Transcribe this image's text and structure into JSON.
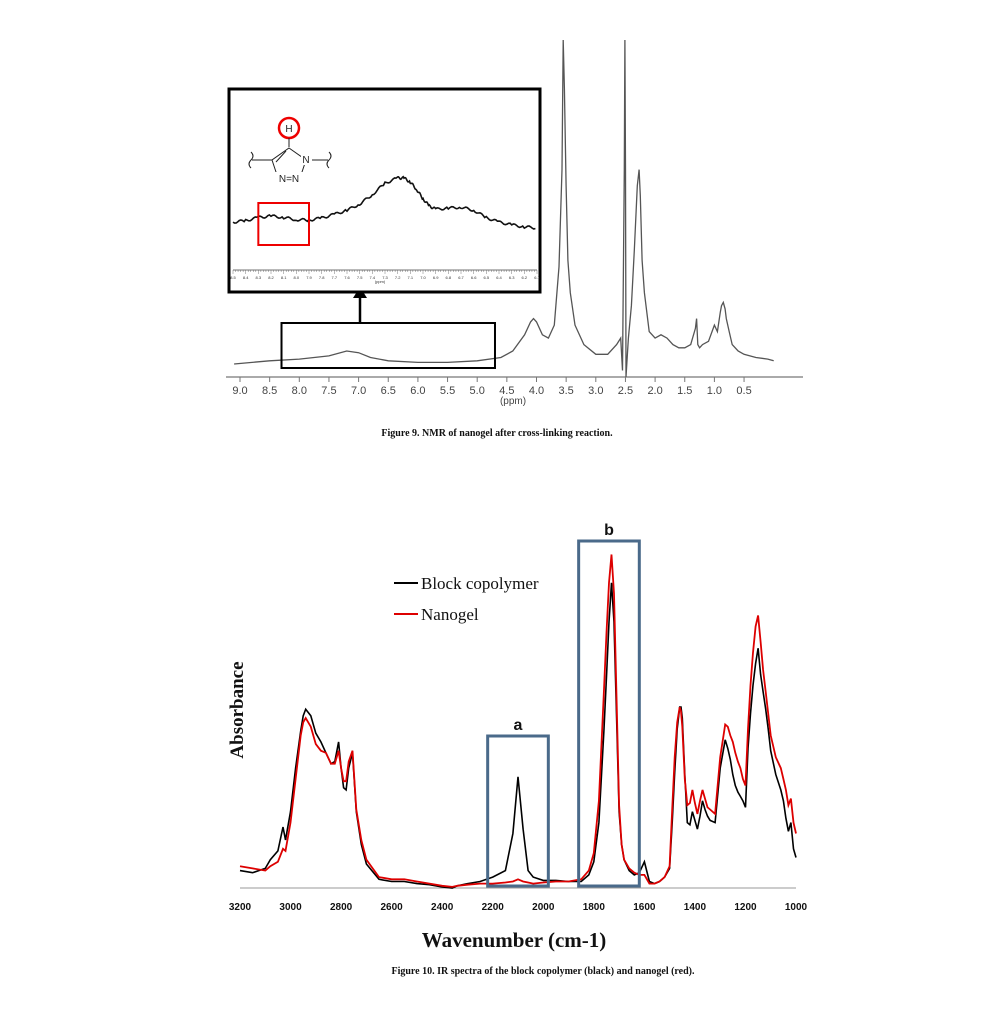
{
  "chart_data": [
    {
      "type": "line",
      "id": "nmr",
      "caption": "Figure 9. NMR of nanogel after cross-linking reaction.",
      "xlabel": "(ppm)",
      "x_ticks": [
        "9.0",
        "8.5",
        "8.0",
        "7.5",
        "7.0",
        "6.5",
        "6.0",
        "5.5",
        "5.0",
        "4.5",
        "4.0",
        "3.5",
        "3.0",
        "2.5",
        "2.0",
        "1.5",
        "1.0",
        "0.5"
      ],
      "xlim": [
        9.1,
        0.0
      ],
      "axis_direction": "reversed",
      "series": [
        {
          "color": "#555555",
          "x": [
            9.1,
            8.5,
            8.0,
            7.5,
            7.2,
            7.0,
            6.8,
            6.5,
            6.0,
            5.5,
            5.0,
            4.6,
            4.4,
            4.2,
            4.1,
            4.05,
            4.0,
            3.9,
            3.8,
            3.7,
            3.62,
            3.57,
            3.55,
            3.53,
            3.5,
            3.47,
            3.43,
            3.35,
            3.2,
            3.0,
            2.8,
            2.65,
            2.58,
            2.55,
            2.52,
            2.51,
            2.5,
            2.49,
            2.47,
            2.45,
            2.4,
            2.35,
            2.3,
            2.27,
            2.25,
            2.22,
            2.18,
            2.1,
            2.0,
            1.9,
            1.8,
            1.7,
            1.6,
            1.5,
            1.4,
            1.32,
            1.3,
            1.28,
            1.25,
            1.2,
            1.1,
            1.0,
            0.95,
            0.9,
            0.88,
            0.85,
            0.82,
            0.8,
            0.75,
            0.7,
            0.6,
            0.5,
            0.3,
            0.1,
            0.0
          ],
          "y": [
            0.0,
            0.01,
            0.015,
            0.025,
            0.04,
            0.035,
            0.02,
            0.01,
            0.005,
            0.005,
            0.01,
            0.02,
            0.04,
            0.09,
            0.13,
            0.14,
            0.13,
            0.09,
            0.08,
            0.12,
            0.3,
            0.6,
            1.0,
            0.85,
            0.55,
            0.32,
            0.22,
            0.12,
            0.06,
            0.03,
            0.03,
            0.06,
            0.08,
            -0.02,
            0.6,
            1.0,
            0.6,
            -0.04,
            0.02,
            0.08,
            0.18,
            0.35,
            0.55,
            0.6,
            0.52,
            0.32,
            0.22,
            0.1,
            0.08,
            0.09,
            0.08,
            0.06,
            0.05,
            0.05,
            0.06,
            0.11,
            0.14,
            0.06,
            0.05,
            0.06,
            0.07,
            0.12,
            0.1,
            0.16,
            0.18,
            0.19,
            0.17,
            0.14,
            0.1,
            0.06,
            0.04,
            0.03,
            0.02,
            0.015,
            0.01
          ]
        }
      ],
      "highlight_range": [
        8.3,
        4.7
      ],
      "inset": {
        "tick_labels": [
          "8.5",
          "8.4",
          "8.3",
          "8.2",
          "8.1",
          "8.0",
          "7.9",
          "7.8",
          "7.7",
          "7.6",
          "7.5",
          "7.4",
          "7.3",
          "7.2",
          "7.1",
          "7.0",
          "6.9",
          "6.8",
          "6.7",
          "6.6",
          "6.5",
          "6.4",
          "6.3",
          "6.2",
          "6.1"
        ],
        "xlabel": "(ppm)",
        "xlim": [
          8.5,
          6.1
        ],
        "highlight_range": [
          8.3,
          7.9
        ],
        "x": [
          8.5,
          8.4,
          8.3,
          8.2,
          8.1,
          8.0,
          7.9,
          7.8,
          7.7,
          7.6,
          7.5,
          7.4,
          7.3,
          7.2,
          7.15,
          7.1,
          7.05,
          7.0,
          6.95,
          6.9,
          6.8,
          6.7,
          6.6,
          6.5,
          6.4,
          6.3,
          6.2,
          6.1
        ],
        "y": [
          0.15,
          0.18,
          0.24,
          0.27,
          0.24,
          0.2,
          0.19,
          0.23,
          0.3,
          0.38,
          0.5,
          0.68,
          0.9,
          1.0,
          1.0,
          0.92,
          0.78,
          0.6,
          0.46,
          0.4,
          0.42,
          0.44,
          0.38,
          0.24,
          0.15,
          0.1,
          0.06,
          0.04
        ]
      },
      "structure": {
        "atoms": [
          "H",
          "N",
          "N",
          "N"
        ],
        "bond_label": "N=N"
      }
    },
    {
      "type": "line",
      "id": "ir",
      "caption": "Figure 10. IR spectra of the block copolymer (black) and nanogel (red).",
      "xlabel": "Wavenumber (cm-1)",
      "ylabel": "Absorbance",
      "xlim": [
        3200,
        1000
      ],
      "axis_direction": "reversed",
      "x_ticks": [
        "3200",
        "3000",
        "2800",
        "2600",
        "2400",
        "2200",
        "2000",
        "1800",
        "1600",
        "1400",
        "1200",
        "1000"
      ],
      "legend": {
        "position": "top-left"
      },
      "boxes": [
        {
          "label": "a",
          "range": [
            2220,
            1980
          ]
        },
        {
          "label": "b",
          "range": [
            1860,
            1620
          ]
        }
      ],
      "x": [
        3200,
        3150,
        3100,
        3080,
        3050,
        3030,
        3020,
        3000,
        2980,
        2960,
        2950,
        2940,
        2920,
        2900,
        2880,
        2860,
        2840,
        2825,
        2810,
        2800,
        2790,
        2780,
        2770,
        2755,
        2740,
        2720,
        2700,
        2650,
        2600,
        2550,
        2500,
        2450,
        2400,
        2360,
        2340,
        2300,
        2250,
        2200,
        2150,
        2120,
        2100,
        2080,
        2060,
        2040,
        2000,
        1950,
        1900,
        1850,
        1820,
        1800,
        1780,
        1760,
        1750,
        1740,
        1730,
        1720,
        1710,
        1700,
        1690,
        1680,
        1660,
        1640,
        1620,
        1600,
        1580,
        1560,
        1540,
        1520,
        1500,
        1490,
        1480,
        1470,
        1460,
        1455,
        1450,
        1440,
        1430,
        1420,
        1410,
        1400,
        1390,
        1380,
        1370,
        1360,
        1350,
        1340,
        1320,
        1300,
        1280,
        1270,
        1260,
        1250,
        1240,
        1230,
        1220,
        1210,
        1200,
        1190,
        1180,
        1170,
        1160,
        1150,
        1140,
        1130,
        1120,
        1110,
        1100,
        1080,
        1060,
        1050,
        1040,
        1030,
        1020,
        1010,
        1000
      ],
      "series": [
        {
          "name": "Block copolymer",
          "color": "#000000",
          "y": [
            0.08,
            0.07,
            0.09,
            0.13,
            0.17,
            0.28,
            0.22,
            0.35,
            0.55,
            0.72,
            0.79,
            0.82,
            0.79,
            0.71,
            0.67,
            0.62,
            0.57,
            0.58,
            0.67,
            0.55,
            0.46,
            0.45,
            0.55,
            0.62,
            0.35,
            0.2,
            0.11,
            0.04,
            0.03,
            0.03,
            0.02,
            0.015,
            0.005,
            0.0,
            0.01,
            0.02,
            0.03,
            0.05,
            0.08,
            0.25,
            0.51,
            0.27,
            0.08,
            0.05,
            0.035,
            0.035,
            0.03,
            0.03,
            0.06,
            0.12,
            0.3,
            0.72,
            0.97,
            1.22,
            1.4,
            1.22,
            0.78,
            0.35,
            0.2,
            0.13,
            0.08,
            0.06,
            0.07,
            0.12,
            0.03,
            0.02,
            0.03,
            0.05,
            0.09,
            0.3,
            0.53,
            0.73,
            0.83,
            0.83,
            0.78,
            0.52,
            0.3,
            0.29,
            0.35,
            0.31,
            0.27,
            0.33,
            0.4,
            0.36,
            0.33,
            0.31,
            0.3,
            0.55,
            0.68,
            0.64,
            0.59,
            0.52,
            0.47,
            0.44,
            0.42,
            0.4,
            0.37,
            0.64,
            0.8,
            0.93,
            1.03,
            1.1,
            0.98,
            0.9,
            0.82,
            0.73,
            0.63,
            0.52,
            0.45,
            0.4,
            0.32,
            0.26,
            0.3,
            0.18,
            0.14
          ]
        },
        {
          "name": "Nanogel",
          "color": "#dd0000",
          "y": [
            0.1,
            0.09,
            0.08,
            0.1,
            0.12,
            0.18,
            0.17,
            0.3,
            0.5,
            0.7,
            0.76,
            0.78,
            0.74,
            0.66,
            0.63,
            0.62,
            0.57,
            0.57,
            0.63,
            0.55,
            0.49,
            0.49,
            0.58,
            0.63,
            0.36,
            0.22,
            0.13,
            0.05,
            0.04,
            0.04,
            0.03,
            0.02,
            0.01,
            0.005,
            0.01,
            0.015,
            0.02,
            0.02,
            0.025,
            0.03,
            0.04,
            0.03,
            0.025,
            0.02,
            0.025,
            0.03,
            0.03,
            0.04,
            0.08,
            0.16,
            0.4,
            0.9,
            1.17,
            1.4,
            1.53,
            1.35,
            0.86,
            0.38,
            0.2,
            0.13,
            0.09,
            0.07,
            0.06,
            0.06,
            0.02,
            0.02,
            0.03,
            0.05,
            0.1,
            0.36,
            0.6,
            0.76,
            0.83,
            0.81,
            0.74,
            0.5,
            0.38,
            0.39,
            0.45,
            0.39,
            0.34,
            0.4,
            0.45,
            0.41,
            0.37,
            0.36,
            0.34,
            0.6,
            0.75,
            0.74,
            0.7,
            0.67,
            0.62,
            0.58,
            0.55,
            0.5,
            0.47,
            0.73,
            0.93,
            1.08,
            1.2,
            1.25,
            1.13,
            1.0,
            0.9,
            0.8,
            0.7,
            0.6,
            0.55,
            0.5,
            0.45,
            0.38,
            0.41,
            0.3,
            0.25
          ]
        }
      ]
    }
  ]
}
